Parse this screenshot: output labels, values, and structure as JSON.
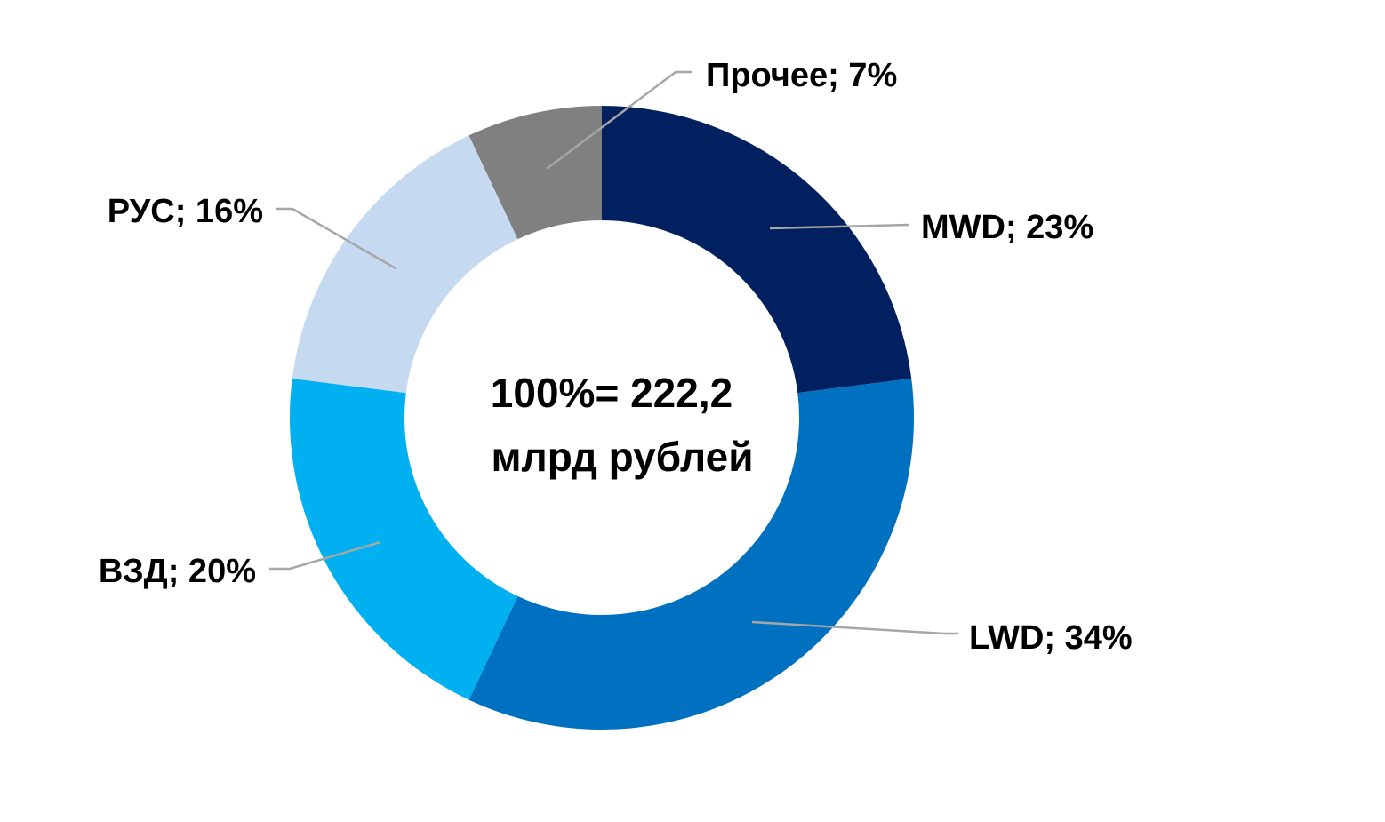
{
  "chart_data": {
    "type": "pie",
    "style": "donut",
    "center_label": {
      "line1": "100%= 222,2",
      "line2": "млрд рублей"
    },
    "slices": [
      {
        "name": "MWD",
        "label": "MWD; 23%",
        "value": 23,
        "color": "#002060"
      },
      {
        "name": "LWD",
        "label": "LWD; 34%",
        "value": 34,
        "color": "#0070C0"
      },
      {
        "name": "ВЗД",
        "label": "ВЗД; 20%",
        "value": 20,
        "color": "#00B0F0"
      },
      {
        "name": "РУС",
        "label": "РУС; 16%",
        "value": 16,
        "color": "#C5D9F1"
      },
      {
        "name": "Прочее",
        "label": "Прочее; 7%",
        "value": 7,
        "color": "#808080"
      }
    ],
    "start_angle": "12 o'clock",
    "direction": "clockwise",
    "legend": "none",
    "data_labels": "outside with leader lines"
  }
}
